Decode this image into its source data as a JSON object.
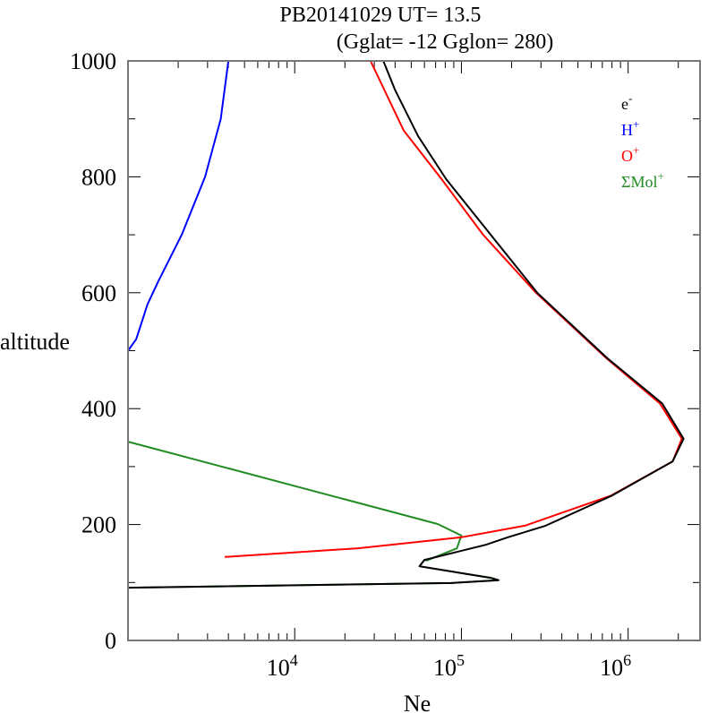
{
  "chart_data": {
    "type": "line",
    "title": "PB20141029   UT=  13.5",
    "subtitle": "(Gglat= -12   Gglon=  280)",
    "xlabel": "Ne",
    "ylabel": "altitude",
    "xscale": "log",
    "xlim": [
      1000,
      2700000
    ],
    "ylim": [
      0,
      1000
    ],
    "x_ticks": [
      {
        "value": 10000,
        "base": "10",
        "exp": "4"
      },
      {
        "value": 100000,
        "base": "10",
        "exp": "5"
      },
      {
        "value": 1000000,
        "base": "10",
        "exp": "6"
      }
    ],
    "y_ticks": [
      "0",
      "200",
      "400",
      "600",
      "800",
      "1000"
    ],
    "legend_placement": "top-right",
    "series": [
      {
        "name": "e",
        "sup": "-",
        "color": "#000000",
        "points": [
          [
            1000,
            91
          ],
          [
            87000,
            99
          ],
          [
            167000,
            104
          ],
          [
            150000,
            108
          ],
          [
            56000,
            128
          ],
          [
            60000,
            139
          ],
          [
            140000,
            165
          ],
          [
            190000,
            178
          ],
          [
            320000,
            198
          ],
          [
            800000,
            250
          ],
          [
            1850000,
            309
          ],
          [
            2150000,
            348
          ],
          [
            1600000,
            409
          ],
          [
            750000,
            487
          ],
          [
            285000,
            600
          ],
          [
            150000,
            700
          ],
          [
            81000,
            796
          ],
          [
            55000,
            870
          ],
          [
            40000,
            950
          ],
          [
            34000,
            1000
          ]
        ]
      },
      {
        "name": "H",
        "sup": "+",
        "color": "#0000ff",
        "points": [
          [
            1000,
            500
          ],
          [
            1120,
            520
          ],
          [
            1310,
            580
          ],
          [
            1520,
            620
          ],
          [
            2100,
            700
          ],
          [
            2900,
            800
          ],
          [
            3600,
            900
          ],
          [
            4000,
            1000
          ]
        ]
      },
      {
        "name": "O",
        "sup": "+",
        "color": "#ff0000",
        "points": [
          [
            3800,
            144
          ],
          [
            24000,
            159
          ],
          [
            100000,
            178
          ],
          [
            240000,
            198
          ],
          [
            790000,
            250
          ],
          [
            1850000,
            309
          ],
          [
            2100000,
            348
          ],
          [
            1550000,
            409
          ],
          [
            740000,
            487
          ],
          [
            280000,
            600
          ],
          [
            135000,
            700
          ],
          [
            76000,
            796
          ],
          [
            45000,
            880
          ],
          [
            28500,
            1000
          ]
        ]
      },
      {
        "name": "ΣMol",
        "sup": "+",
        "color": "#228b22",
        "points": [
          [
            1000,
            91
          ],
          [
            87000,
            99
          ],
          [
            167000,
            104
          ],
          [
            150000,
            108
          ],
          [
            56000,
            128
          ],
          [
            60000,
            139
          ],
          [
            62000,
            138
          ],
          [
            94000,
            159
          ],
          [
            100000,
            181
          ],
          [
            72000,
            201
          ],
          [
            1000,
            343
          ]
        ]
      }
    ]
  }
}
